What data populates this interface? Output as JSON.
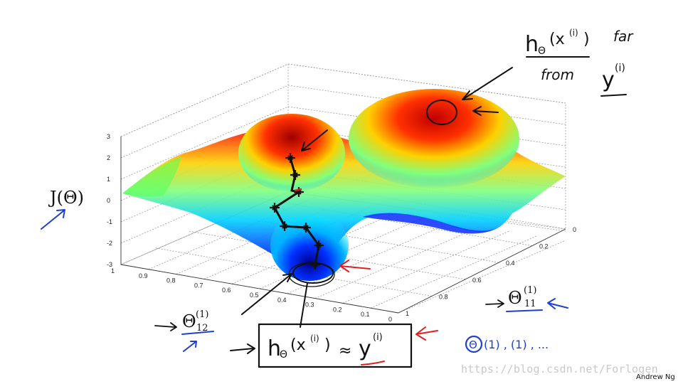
{
  "chart_data": {
    "type": "surface",
    "title": "",
    "z_axis": {
      "label": "J(Θ)",
      "ticks": [
        "3",
        "2",
        "1",
        "0",
        "-1",
        "-2",
        "-3"
      ],
      "range": [
        -3,
        3
      ]
    },
    "x_axis": {
      "label": "Θ12(1)",
      "ticks": [
        "1",
        "0.9",
        "0.8",
        "0.7",
        "0.6",
        "0.5",
        "0.4",
        "0.3",
        "0.2",
        "0.1",
        "0"
      ],
      "range": [
        0,
        1
      ]
    },
    "y_axis": {
      "label": "Θ11(1)",
      "ticks": [
        "0",
        "0.2",
        "0.4",
        "0.6",
        "0.8",
        "1"
      ],
      "range": [
        0,
        1
      ]
    },
    "colormap": [
      "#00008f",
      "#0050ff",
      "#00d0ff",
      "#7fff7f",
      "#ffd000",
      "#ff3000",
      "#8f0000"
    ],
    "grid": true,
    "descent_path_points": 8
  },
  "annotations": {
    "cost_label": "J(Θ)",
    "theta12_base": "Θ",
    "theta12_sup": "(1)",
    "theta12_sub": "12",
    "theta11_base": "Θ",
    "theta11_sup": "(1)",
    "theta11_sub": "11",
    "top_note_h": "h",
    "top_note_theta": "Θ",
    "top_note_x": "(x",
    "top_note_i": "(i)",
    "top_note_close": ")",
    "top_note_far": "far",
    "top_note_from": "from",
    "top_note_y": "y",
    "box_h": "h",
    "box_theta": "Θ",
    "box_x": "(x",
    "box_i": "(i)",
    "box_close": ")",
    "box_approx": "≈",
    "box_y": "y",
    "box_yi": "(i)",
    "blue_series": "(1) , (1) , ...",
    "blue_theta_symbol": "Θ",
    "arrow_glyph": "->"
  },
  "watermark": "https://blog.csdn.net/Forlogen",
  "credit": "Andrew Ng",
  "colors": {
    "ink": "#111111",
    "blue_ink": "#1f3fd0",
    "red_ink": "#e02020",
    "grid": "#9a9a9a"
  }
}
